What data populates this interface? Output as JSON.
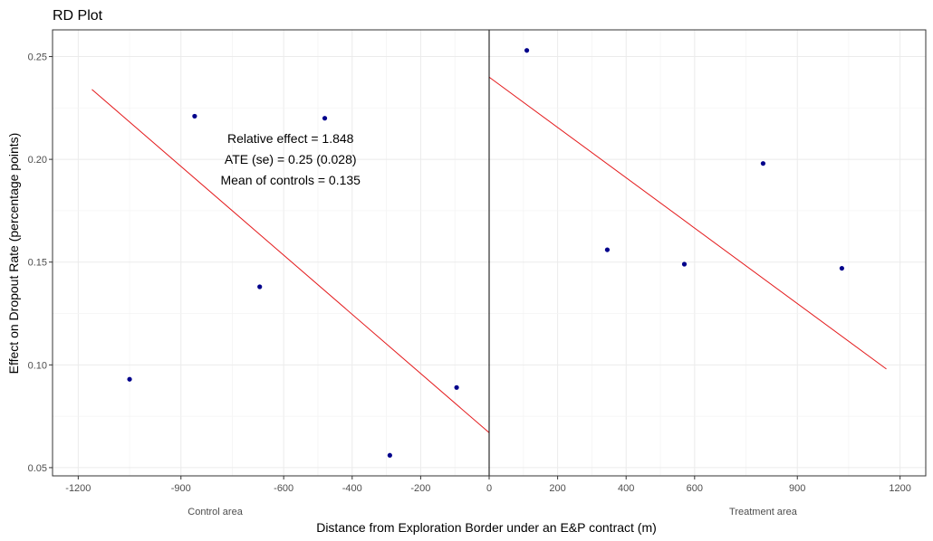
{
  "chart_data": {
    "type": "scatter",
    "title": "RD Plot",
    "xlabel": "Distance from Exploration Border under an E&P contract (m)",
    "ylabel": "Effect on Dropout Rate (percentage points)",
    "xlim": [
      -1275,
      1275
    ],
    "ylim": [
      0.046,
      0.263
    ],
    "x_ticks": [
      -1200,
      -900,
      -600,
      -400,
      -200,
      0,
      200,
      400,
      600,
      900,
      1200
    ],
    "y_ticks": [
      0.05,
      0.1,
      0.15,
      0.2,
      0.25
    ],
    "y_tick_labels": [
      "0.05",
      "0.10",
      "0.15",
      "0.20",
      "0.25"
    ],
    "grid": true,
    "cutoff": 0,
    "region_labels": [
      {
        "text": "Control area",
        "x": -800
      },
      {
        "text": "Treatment area",
        "x": 800
      }
    ],
    "annotation": {
      "lines": [
        "Relative effect = 1.848",
        "ATE (se) = 0.25 (0.028)",
        "Mean of controls = 0.135"
      ],
      "x": -580,
      "y": 0.2
    },
    "series": [
      {
        "color": "#00008b",
        "points": [
          {
            "x": -1050,
            "y": 0.093
          },
          {
            "x": -860,
            "y": 0.221
          },
          {
            "x": -670,
            "y": 0.138
          },
          {
            "x": -480,
            "y": 0.22
          },
          {
            "x": -290,
            "y": 0.056
          },
          {
            "x": -95,
            "y": 0.089
          },
          {
            "x": 110,
            "y": 0.253
          },
          {
            "x": 345,
            "y": 0.156
          },
          {
            "x": 570,
            "y": 0.149
          },
          {
            "x": 800,
            "y": 0.198
          },
          {
            "x": 1030,
            "y": 0.147
          }
        ]
      }
    ],
    "fit_lines": [
      {
        "color": "#e41a1c",
        "x": [
          -1160,
          0
        ],
        "y": [
          0.234,
          0.067
        ]
      },
      {
        "color": "#e41a1c",
        "x": [
          0,
          1160
        ],
        "y": [
          0.24,
          0.098
        ]
      }
    ]
  }
}
